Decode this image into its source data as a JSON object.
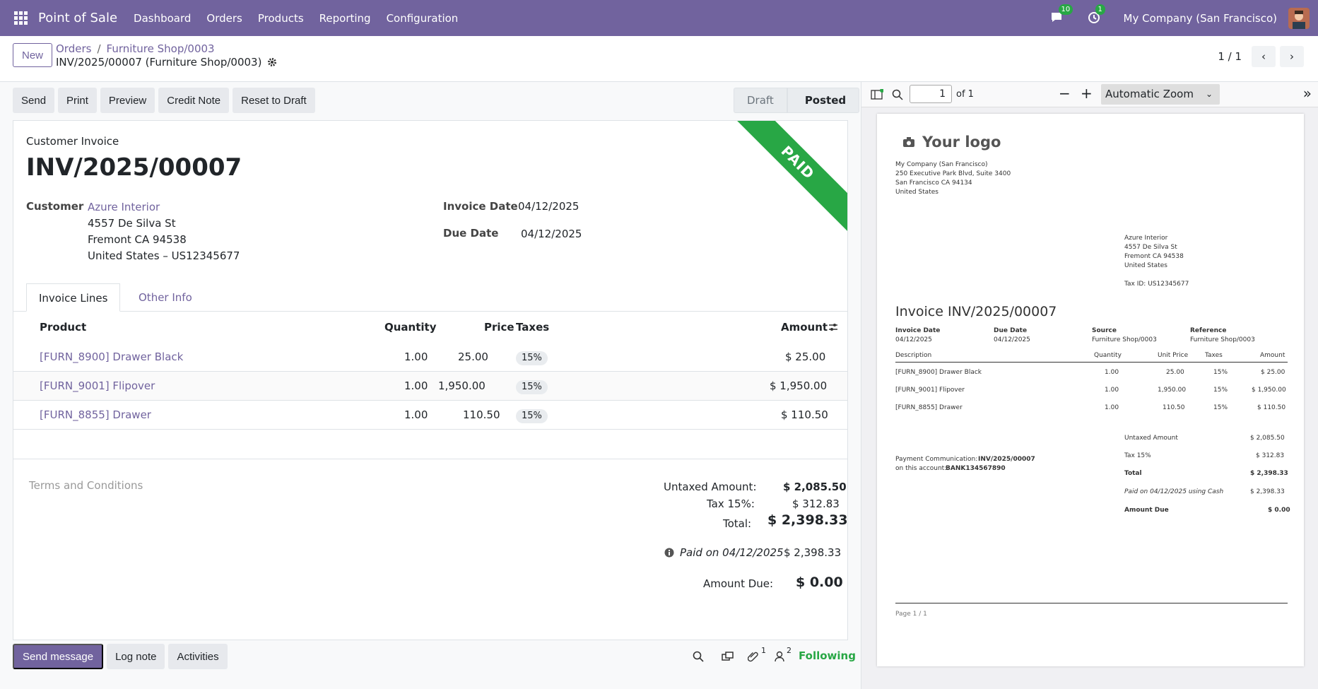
{
  "navbar": {
    "app_name": "Point of Sale",
    "menu": [
      "Dashboard",
      "Orders",
      "Products",
      "Reporting",
      "Configuration"
    ],
    "messages_count": "10",
    "activities_count": "1",
    "company": "My Company (San Francisco)"
  },
  "control": {
    "new_label": "New",
    "breadcrumb": [
      "Orders",
      "Furniture Shop/0003"
    ],
    "record_name": "INV/2025/00007 (Furniture Shop/0003)",
    "pager": "1 / 1"
  },
  "actions": [
    "Send",
    "Print",
    "Preview",
    "Credit Note",
    "Reset to Draft"
  ],
  "status": {
    "stages": [
      "Draft",
      "Posted"
    ],
    "current": "Posted"
  },
  "invoice": {
    "ribbon": "PAID",
    "type_label": "Customer Invoice",
    "name": "INV/2025/00007",
    "customer_label": "Customer",
    "customer_name": "Azure Interior",
    "address_line1": "4557 De Silva St",
    "address_line2": "Fremont CA 94538",
    "address_line3": "United States – US12345677",
    "invoice_date_label": "Invoice Date",
    "invoice_date": "04/12/2025",
    "due_date_label": "Due Date",
    "due_date": "04/12/2025"
  },
  "tabs": [
    "Invoice Lines",
    "Other Info"
  ],
  "lines": {
    "headers": {
      "product": "Product",
      "quantity": "Quantity",
      "price": "Price",
      "taxes": "Taxes",
      "amount": "Amount"
    },
    "rows": [
      {
        "product": "[FURN_8900] Drawer Black",
        "quantity": "1.00",
        "price": "25.00",
        "tax": "15%",
        "amount": "$ 25.00"
      },
      {
        "product": "[FURN_9001] Flipover",
        "quantity": "1.00",
        "price": "1,950.00",
        "tax": "15%",
        "amount": "$ 1,950.00"
      },
      {
        "product": "[FURN_8855] Drawer",
        "quantity": "1.00",
        "price": "110.50",
        "tax": "15%",
        "amount": "$ 110.50"
      }
    ]
  },
  "terms_placeholder": "Terms and Conditions",
  "totals": {
    "untaxed_label": "Untaxed Amount:",
    "untaxed": "$ 2,085.50",
    "tax_label": "Tax 15%:",
    "tax": "$ 312.83",
    "total_label": "Total:",
    "total": "$ 2,398.33",
    "paid_label": "Paid on 04/12/2025",
    "paid": "$ 2,398.33",
    "due_label": "Amount Due:",
    "due": "$ 0.00"
  },
  "chatter": {
    "send_message": "Send message",
    "log_note": "Log note",
    "activities": "Activities",
    "attachments_count": "1",
    "followers_count": "2",
    "following": "Following"
  },
  "pdf": {
    "page_number": "1",
    "page_total": "of 1",
    "zoom": "Automatic Zoom",
    "logo": "Your logo",
    "company_lines": [
      "My Company (San Francisco)",
      "250 Executive Park Blvd, Suite 3400",
      "San Francisco CA 94134",
      "United States"
    ],
    "customer_lines": [
      "Azure Interior",
      "4557 De Silva St",
      "Fremont CA 94538",
      "United States"
    ],
    "tax_id": "Tax ID: US12345677",
    "title": "Invoice INV/2025/00007",
    "info_labels": [
      "Invoice Date",
      "Due Date",
      "Source",
      "Reference"
    ],
    "info_values": [
      "04/12/2025",
      "04/12/2025",
      "Furniture Shop/0003",
      "Furniture Shop/0003"
    ],
    "headers": [
      "Description",
      "Quantity",
      "Unit Price",
      "Taxes",
      "Amount"
    ],
    "rows": [
      [
        "[FURN_8900] Drawer Black",
        "1.00",
        "25.00",
        "15%",
        "$ 25.00"
      ],
      [
        "[FURN_9001] Flipover",
        "1.00",
        "1,950.00",
        "15%",
        "$ 1,950.00"
      ],
      [
        "[FURN_8855] Drawer",
        "1.00",
        "110.50",
        "15%",
        "$ 110.50"
      ]
    ],
    "payment_comm_label": "Payment Communication:",
    "payment_comm_value": "INV/2025/00007",
    "account_label": "on this account:",
    "account_value": "BANK134567890",
    "totals": [
      [
        "Untaxed Amount",
        "$ 2,085.50"
      ],
      [
        "Tax 15%",
        "$ 312.83"
      ],
      [
        "Total",
        "$ 2,398.33"
      ],
      [
        "Paid on 04/12/2025 using Cash",
        "$ 2,398.33"
      ],
      [
        "Amount Due",
        "$ 0.00"
      ]
    ],
    "footer": "Page 1 / 1"
  }
}
